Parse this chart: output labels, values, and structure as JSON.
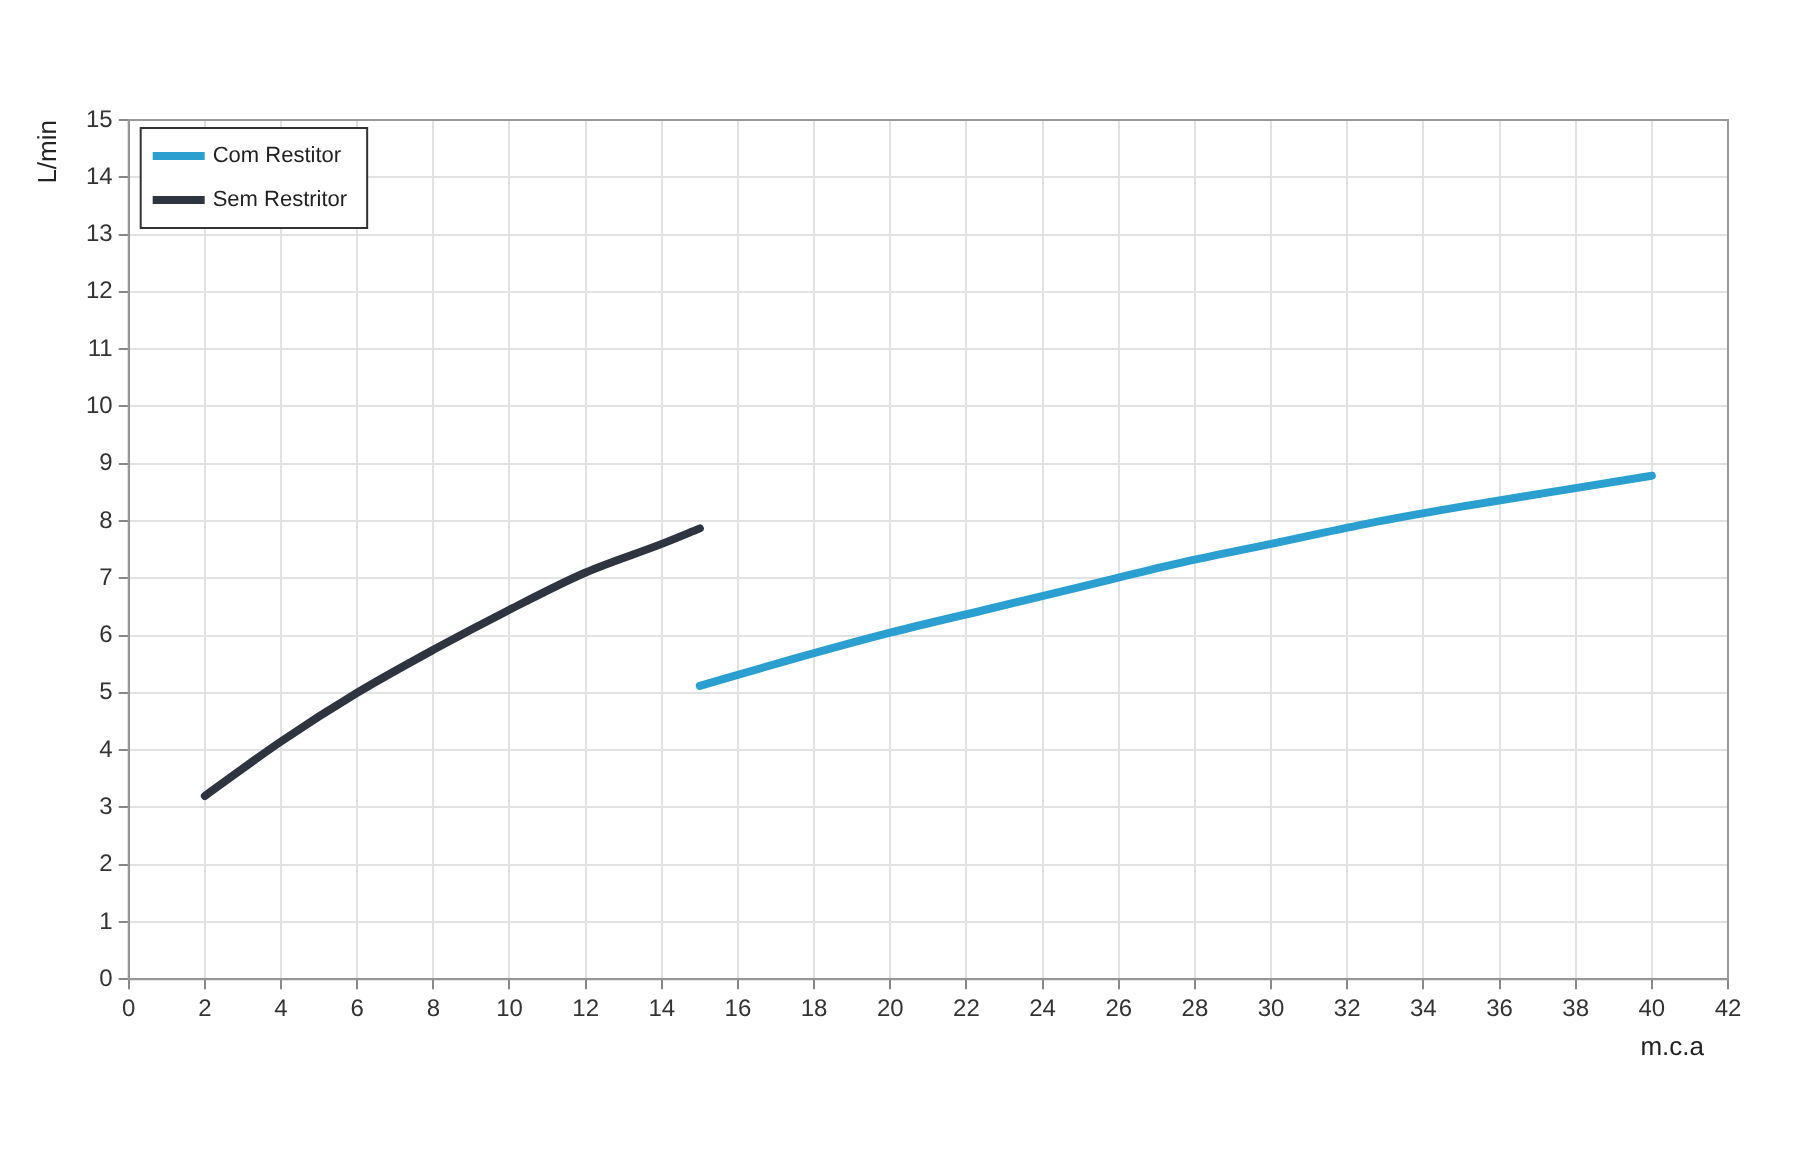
{
  "chart_data": {
    "type": "line",
    "xlabel": "m.c.a",
    "ylabel": "L/min",
    "series": [
      {
        "name": "Com Restitor",
        "color": "#2a9fd0",
        "x": [
          15,
          17.5,
          20,
          22.5,
          25,
          27.5,
          30,
          32.5,
          35,
          37.5,
          40
        ],
        "values": [
          5.12,
          5.6,
          6.05,
          6.45,
          6.85,
          7.25,
          7.6,
          7.95,
          8.25,
          8.52,
          8.79
        ]
      },
      {
        "name": "Sem Restritor",
        "color": "#2e3440",
        "x": [
          2,
          4,
          6,
          8,
          10,
          12,
          14,
          15
        ],
        "values": [
          3.2,
          4.15,
          5.0,
          5.75,
          6.45,
          7.1,
          7.6,
          7.87
        ]
      }
    ],
    "xlim": [
      0,
      42
    ],
    "xticks": [
      0,
      2,
      4,
      6,
      8,
      10,
      12,
      14,
      16,
      18,
      20,
      22,
      24,
      26,
      28,
      30,
      32,
      34,
      36,
      38,
      40,
      42
    ],
    "ylim": [
      0,
      15
    ],
    "yticks": [
      0,
      1,
      2,
      3,
      4,
      5,
      6,
      7,
      8,
      9,
      10,
      11,
      12,
      13,
      14,
      15
    ],
    "grid": true,
    "legend": "top left",
    "marker": "none",
    "line_style": "solid"
  }
}
